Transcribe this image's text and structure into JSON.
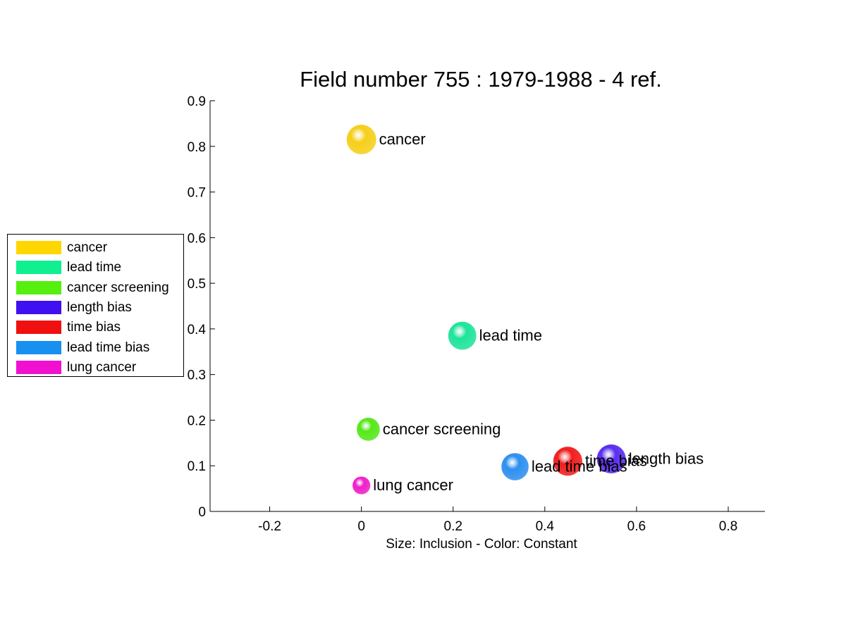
{
  "chart_data": {
    "type": "scatter",
    "title": "Field number 755 : 1979-1988  - 4 ref.",
    "xlabel": "Size: Inclusion - Color: Constant",
    "ylabel": "",
    "xlim": [
      -0.33,
      0.88
    ],
    "ylim": [
      0,
      0.9
    ],
    "xticks": [
      -0.2,
      0,
      0.2,
      0.4,
      0.6,
      0.8
    ],
    "xtick_labels": [
      "-0.2",
      "0",
      "0.2",
      "0.4",
      "0.6",
      "0.8"
    ],
    "yticks": [
      0,
      0.1,
      0.2,
      0.3,
      0.4,
      0.5,
      0.6,
      0.7,
      0.8,
      0.9
    ],
    "ytick_labels": [
      "0",
      "0.1",
      "0.2",
      "0.3",
      "0.4",
      "0.5",
      "0.6",
      "0.7",
      "0.8",
      "0.9"
    ],
    "grid": false,
    "legend_position": "left",
    "points": [
      {
        "label": "cancer",
        "x": 0.0,
        "y": 0.815,
        "size": 1.0,
        "color": "#f5cf1a"
      },
      {
        "label": "lead time",
        "x": 0.22,
        "y": 0.385,
        "size": 0.95,
        "color": "#1fe39a"
      },
      {
        "label": "cancer screening",
        "x": 0.015,
        "y": 0.18,
        "size": 0.78,
        "color": "#55e81a"
      },
      {
        "label": "length bias",
        "x": 0.545,
        "y": 0.115,
        "size": 0.98,
        "color": "#5a2ef0"
      },
      {
        "label": "time bias",
        "x": 0.45,
        "y": 0.11,
        "size": 0.98,
        "color": "#f01e1e"
      },
      {
        "label": "lead time bias",
        "x": 0.335,
        "y": 0.098,
        "size": 0.92,
        "color": "#2e8ff0"
      },
      {
        "label": "lung cancer",
        "x": 0.0,
        "y": 0.057,
        "size": 0.6,
        "color": "#f01ec8"
      }
    ]
  },
  "legend": {
    "items": [
      {
        "label": "cancer",
        "color": "#ffd700"
      },
      {
        "label": "lead time",
        "color": "#10f090"
      },
      {
        "label": "cancer screening",
        "color": "#55f010"
      },
      {
        "label": "length bias",
        "color": "#4010f0"
      },
      {
        "label": "time bias",
        "color": "#f01010"
      },
      {
        "label": "lead time bias",
        "color": "#1890f0"
      },
      {
        "label": "lung cancer",
        "color": "#f010d0"
      }
    ]
  }
}
